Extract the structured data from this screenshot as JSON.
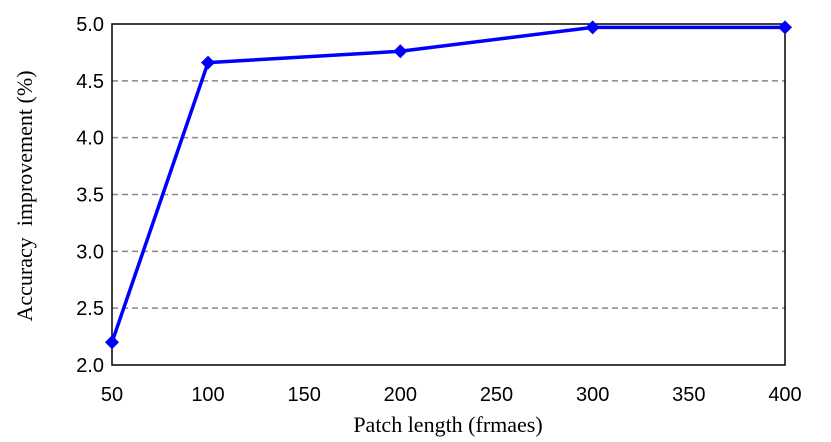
{
  "chart_data": {
    "type": "line",
    "title": "",
    "xlabel": "Patch length (frmaes)",
    "ylabel": "Accuracy  improvement (%)",
    "xlim": [
      50,
      400
    ],
    "ylim": [
      2.0,
      5.0
    ],
    "x_ticks": [
      "50",
      "100",
      "150",
      "200",
      "250",
      "300",
      "350",
      "400"
    ],
    "y_ticks": [
      "2.0",
      "2.5",
      "3.0",
      "3.5",
      "4.0",
      "4.5",
      "5.0"
    ],
    "grid": "horizontal dashed",
    "series": [
      {
        "color": "#0000ff",
        "marker": "diamond",
        "x": [
          50,
          100,
          200,
          300,
          400
        ],
        "values": [
          2.2,
          4.66,
          4.76,
          4.97,
          4.97
        ]
      }
    ]
  }
}
